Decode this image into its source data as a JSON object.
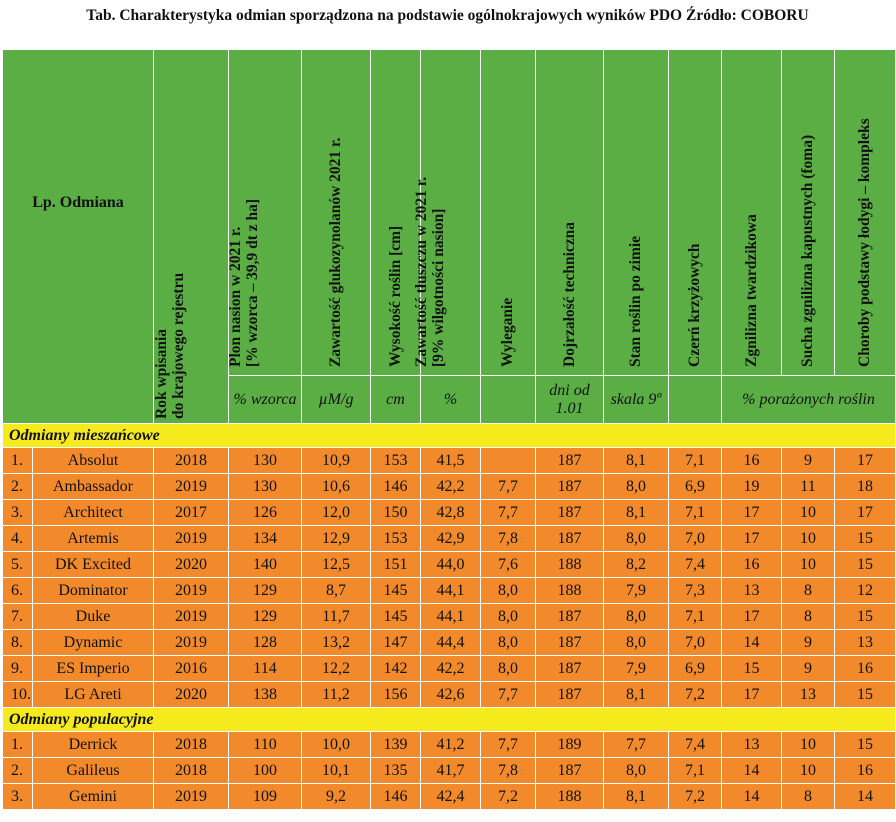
{
  "title": "Tab. Charakterystyka odmian sporządzona na podstawie ogólnokrajowych wyników PDO  Źródło: COBORU",
  "header": {
    "lp_odmiana": "Lp. Odmiana",
    "rok_line1": "Rok wpisania",
    "rok_line2": "do krajowego rejestru",
    "plon_line1": "Plon nasion w 2021 r.",
    "plon_line2": "[% wzorca – 39,9 dt z ha]",
    "gluko": "Zawartość glukozynolanów 2021 r.",
    "wysokosc": "Wysokość roślin [cm]",
    "tluszcz_line1": "Zawartość tłuszczu w 2021 r.",
    "tluszcz_line2": "[9% wilgotności nasion]",
    "wyleganie": "Wyleganie",
    "dojrzalosc": "Dojrzałość techniczna",
    "stan": "Stan roślin po zimie",
    "czern": "Czerń krzyżowych",
    "zgnilizna": "Zgnilizna twardzikowa",
    "sucha": "Sucha zgnilizna kapustnych (foma)",
    "choroby": "Choroby podstawy łodygi – kompleks"
  },
  "units": {
    "plon": "% wzorca",
    "gluko": "µM/g",
    "wysokosc": "cm",
    "tluszcz": "%",
    "dojrzalosc": "dni od 1.01",
    "stan": "skala 9º",
    "porazone": "% porażonych roślin"
  },
  "sections": [
    {
      "label": "Odmiany mieszańcowe",
      "rows": [
        {
          "lp": "1.",
          "name": "Absolut",
          "rok": "2018",
          "plon": "130",
          "gluko": "10,9",
          "wys": "153",
          "tl": "41,5",
          "wyl": "",
          "doj": "187",
          "stan": "8,1",
          "czern": "7,1",
          "zgn": "16",
          "sucha": "9",
          "chor": "17"
        },
        {
          "lp": "2.",
          "name": "Ambassador",
          "rok": "2019",
          "plon": "130",
          "gluko": "10,6",
          "wys": "146",
          "tl": "42,2",
          "wyl": "7,7",
          "doj": "187",
          "stan": "8,0",
          "czern": "6,9",
          "zgn": "19",
          "sucha": "11",
          "chor": "18"
        },
        {
          "lp": "3.",
          "name": "Architect",
          "rok": "2017",
          "plon": "126",
          "gluko": "12,0",
          "wys": "150",
          "tl": "42,8",
          "wyl": "7,7",
          "doj": "187",
          "stan": "8,1",
          "czern": "7,1",
          "zgn": "17",
          "sucha": "10",
          "chor": "17"
        },
        {
          "lp": "4.",
          "name": "Artemis",
          "rok": "2019",
          "plon": "134",
          "gluko": "12,9",
          "wys": "153",
          "tl": "42,9",
          "wyl": "7,8",
          "doj": "187",
          "stan": "8,0",
          "czern": "7,0",
          "zgn": "17",
          "sucha": "10",
          "chor": "15"
        },
        {
          "lp": "5.",
          "name": "DK Excited",
          "rok": "2020",
          "plon": "140",
          "gluko": "12,5",
          "wys": "151",
          "tl": "44,0",
          "wyl": "7,6",
          "doj": "188",
          "stan": "8,2",
          "czern": "7,4",
          "zgn": "16",
          "sucha": "10",
          "chor": "15"
        },
        {
          "lp": "6.",
          "name": "Dominator",
          "rok": "2019",
          "plon": "129",
          "gluko": "8,7",
          "wys": "145",
          "tl": "44,1",
          "wyl": "8,0",
          "doj": "188",
          "stan": "7,9",
          "czern": "7,3",
          "zgn": "13",
          "sucha": "8",
          "chor": "12"
        },
        {
          "lp": "7.",
          "name": "Duke",
          "rok": "2019",
          "plon": "129",
          "gluko": "11,7",
          "wys": "145",
          "tl": "44,1",
          "wyl": "8,0",
          "doj": "187",
          "stan": "8,0",
          "czern": "7,1",
          "zgn": "17",
          "sucha": "8",
          "chor": "15"
        },
        {
          "lp": "8.",
          "name": "Dynamic",
          "rok": "2019",
          "plon": "128",
          "gluko": "13,2",
          "wys": "147",
          "tl": "44,4",
          "wyl": "8,0",
          "doj": "187",
          "stan": "8,0",
          "czern": "7,0",
          "zgn": "14",
          "sucha": "9",
          "chor": "13"
        },
        {
          "lp": "9.",
          "name": "ES Imperio",
          "rok": "2016",
          "plon": "114",
          "gluko": "12,2",
          "wys": "142",
          "tl": "42,2",
          "wyl": "8,0",
          "doj": "187",
          "stan": "7,9",
          "czern": "6,9",
          "zgn": "15",
          "sucha": "9",
          "chor": "16"
        },
        {
          "lp": "10.",
          "name": "LG Areti",
          "rok": "2020",
          "plon": "138",
          "gluko": "11,2",
          "wys": "156",
          "tl": "42,6",
          "wyl": "7,7",
          "doj": "187",
          "stan": "8,1",
          "czern": "7,2",
          "zgn": "17",
          "sucha": "13",
          "chor": "15"
        }
      ]
    },
    {
      "label": "Odmiany populacyjne",
      "rows": [
        {
          "lp": "1.",
          "name": "Derrick",
          "rok": "2018",
          "plon": "110",
          "gluko": "10,0",
          "wys": "139",
          "tl": "41,2",
          "wyl": "7,7",
          "doj": "189",
          "stan": "7,7",
          "czern": "7,4",
          "zgn": "13",
          "sucha": "10",
          "chor": "15"
        },
        {
          "lp": "2.",
          "name": "Galileus",
          "rok": "2018",
          "plon": "100",
          "gluko": "10,1",
          "wys": "135",
          "tl": "41,7",
          "wyl": "7,8",
          "doj": "187",
          "stan": "8,0",
          "czern": "7,1",
          "zgn": "14",
          "sucha": "10",
          "chor": "16"
        },
        {
          "lp": "3.",
          "name": "Gemini",
          "rok": "2019",
          "plon": "109",
          "gluko": "9,2",
          "wys": "146",
          "tl": "42,4",
          "wyl": "7,2",
          "doj": "188",
          "stan": "8,1",
          "czern": "7,2",
          "zgn": "14",
          "sucha": "8",
          "chor": "14"
        }
      ]
    }
  ]
}
